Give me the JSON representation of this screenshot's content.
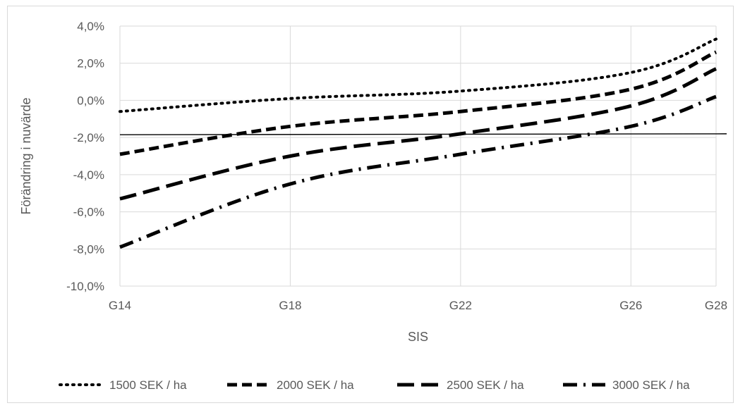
{
  "chart_data": {
    "type": "line",
    "title": "",
    "xlabel": "SIS",
    "ylabel": "Förändring i nuvärde",
    "categories": [
      "G14",
      "G18",
      "G22",
      "G26",
      "G28"
    ],
    "y_tick_labels": [
      "4,0%",
      "2,0%",
      "0,0%",
      "-2,0%",
      "-4,0%",
      "-6,0%",
      "-8,0%",
      "-10,0%"
    ],
    "ylim": [
      -10,
      4
    ],
    "grid": true,
    "legend_position": "bottom",
    "series": [
      {
        "name": "1500 SEK / ha",
        "dash": "dotted",
        "values": [
          -0.6,
          0.1,
          0.5,
          1.5,
          3.3
        ]
      },
      {
        "name": "2000 SEK / ha",
        "dash": "short-dash",
        "values": [
          -2.9,
          -1.4,
          -0.6,
          0.6,
          2.6
        ]
      },
      {
        "name": "2500 SEK / ha",
        "dash": "long-dash",
        "values": [
          -5.3,
          -3.0,
          -1.8,
          -0.3,
          1.7
        ]
      },
      {
        "name": "3000 SEK / ha",
        "dash": "dash-dot",
        "values": [
          -7.9,
          -4.5,
          -2.9,
          -1.4,
          0.2
        ]
      }
    ],
    "reference_line": {
      "y_start": -1.85,
      "y_end": -1.8
    }
  }
}
